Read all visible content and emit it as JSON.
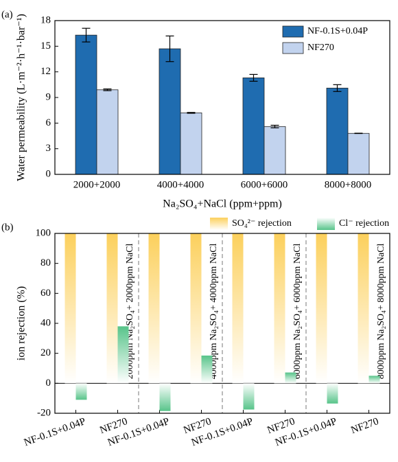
{
  "chart_data": [
    {
      "type": "bar",
      "panel_label": "(a)",
      "y_label": "Water permeability (L·m⁻²·h⁻¹·bar⁻¹)",
      "x_label": "Na₂SO₄+NaCl (ppm+ppm)",
      "categories": [
        "2000+2000",
        "4000+4000",
        "6000+6000",
        "8000+8000"
      ],
      "series": [
        {
          "name": "NF-0.1S+0.04P",
          "color": "#1f6cb0",
          "values": [
            16.3,
            14.7,
            11.3,
            10.1
          ],
          "errors": [
            0.8,
            1.5,
            0.4,
            0.4
          ]
        },
        {
          "name": "NF270",
          "color": "#c2d3ee",
          "values": [
            9.9,
            7.2,
            5.6,
            4.8
          ],
          "errors": [
            0.1,
            0.05,
            0.15,
            0.02
          ]
        }
      ],
      "ylim": [
        0,
        18
      ],
      "yticks": [
        0,
        3,
        6,
        9,
        12,
        15,
        18
      ],
      "legend": "upper right"
    },
    {
      "type": "bar",
      "panel_label": "(b)",
      "y_label": "ion rejection (%)",
      "categories": [
        "NF-0.1S+0.04P",
        "NF270",
        "NF-0.1S+0.04P",
        "NF270",
        "NF-0.1S+0.04P",
        "NF270",
        "NF-0.1S+0.04P",
        "NF270"
      ],
      "groups": [
        "2000ppm Na₂SO₄+ 2000ppm NaCl",
        "4000ppm Na₂SO₄+ 4000ppm NaCl",
        "6000ppm Na₂SO₄+ 6000ppm NaCl",
        "8000ppm Na₂SO₄+ 8000ppm NaCl"
      ],
      "series": [
        {
          "name": "SO₄²⁻ rejection",
          "color": "#fcd05c",
          "gradient": true,
          "values": [
            100,
            100,
            100,
            100,
            100,
            100,
            100,
            100
          ]
        },
        {
          "name": "Cl⁻ rejection",
          "color": "#58c48a",
          "gradient": true,
          "values": [
            -11,
            38,
            -18.5,
            18.5,
            -17.5,
            7.2,
            -13.5,
            5
          ]
        }
      ],
      "ylim": [
        -20,
        100
      ],
      "yticks": [
        -20,
        0,
        20,
        40,
        60,
        80,
        100
      ],
      "legend": "above right"
    }
  ]
}
